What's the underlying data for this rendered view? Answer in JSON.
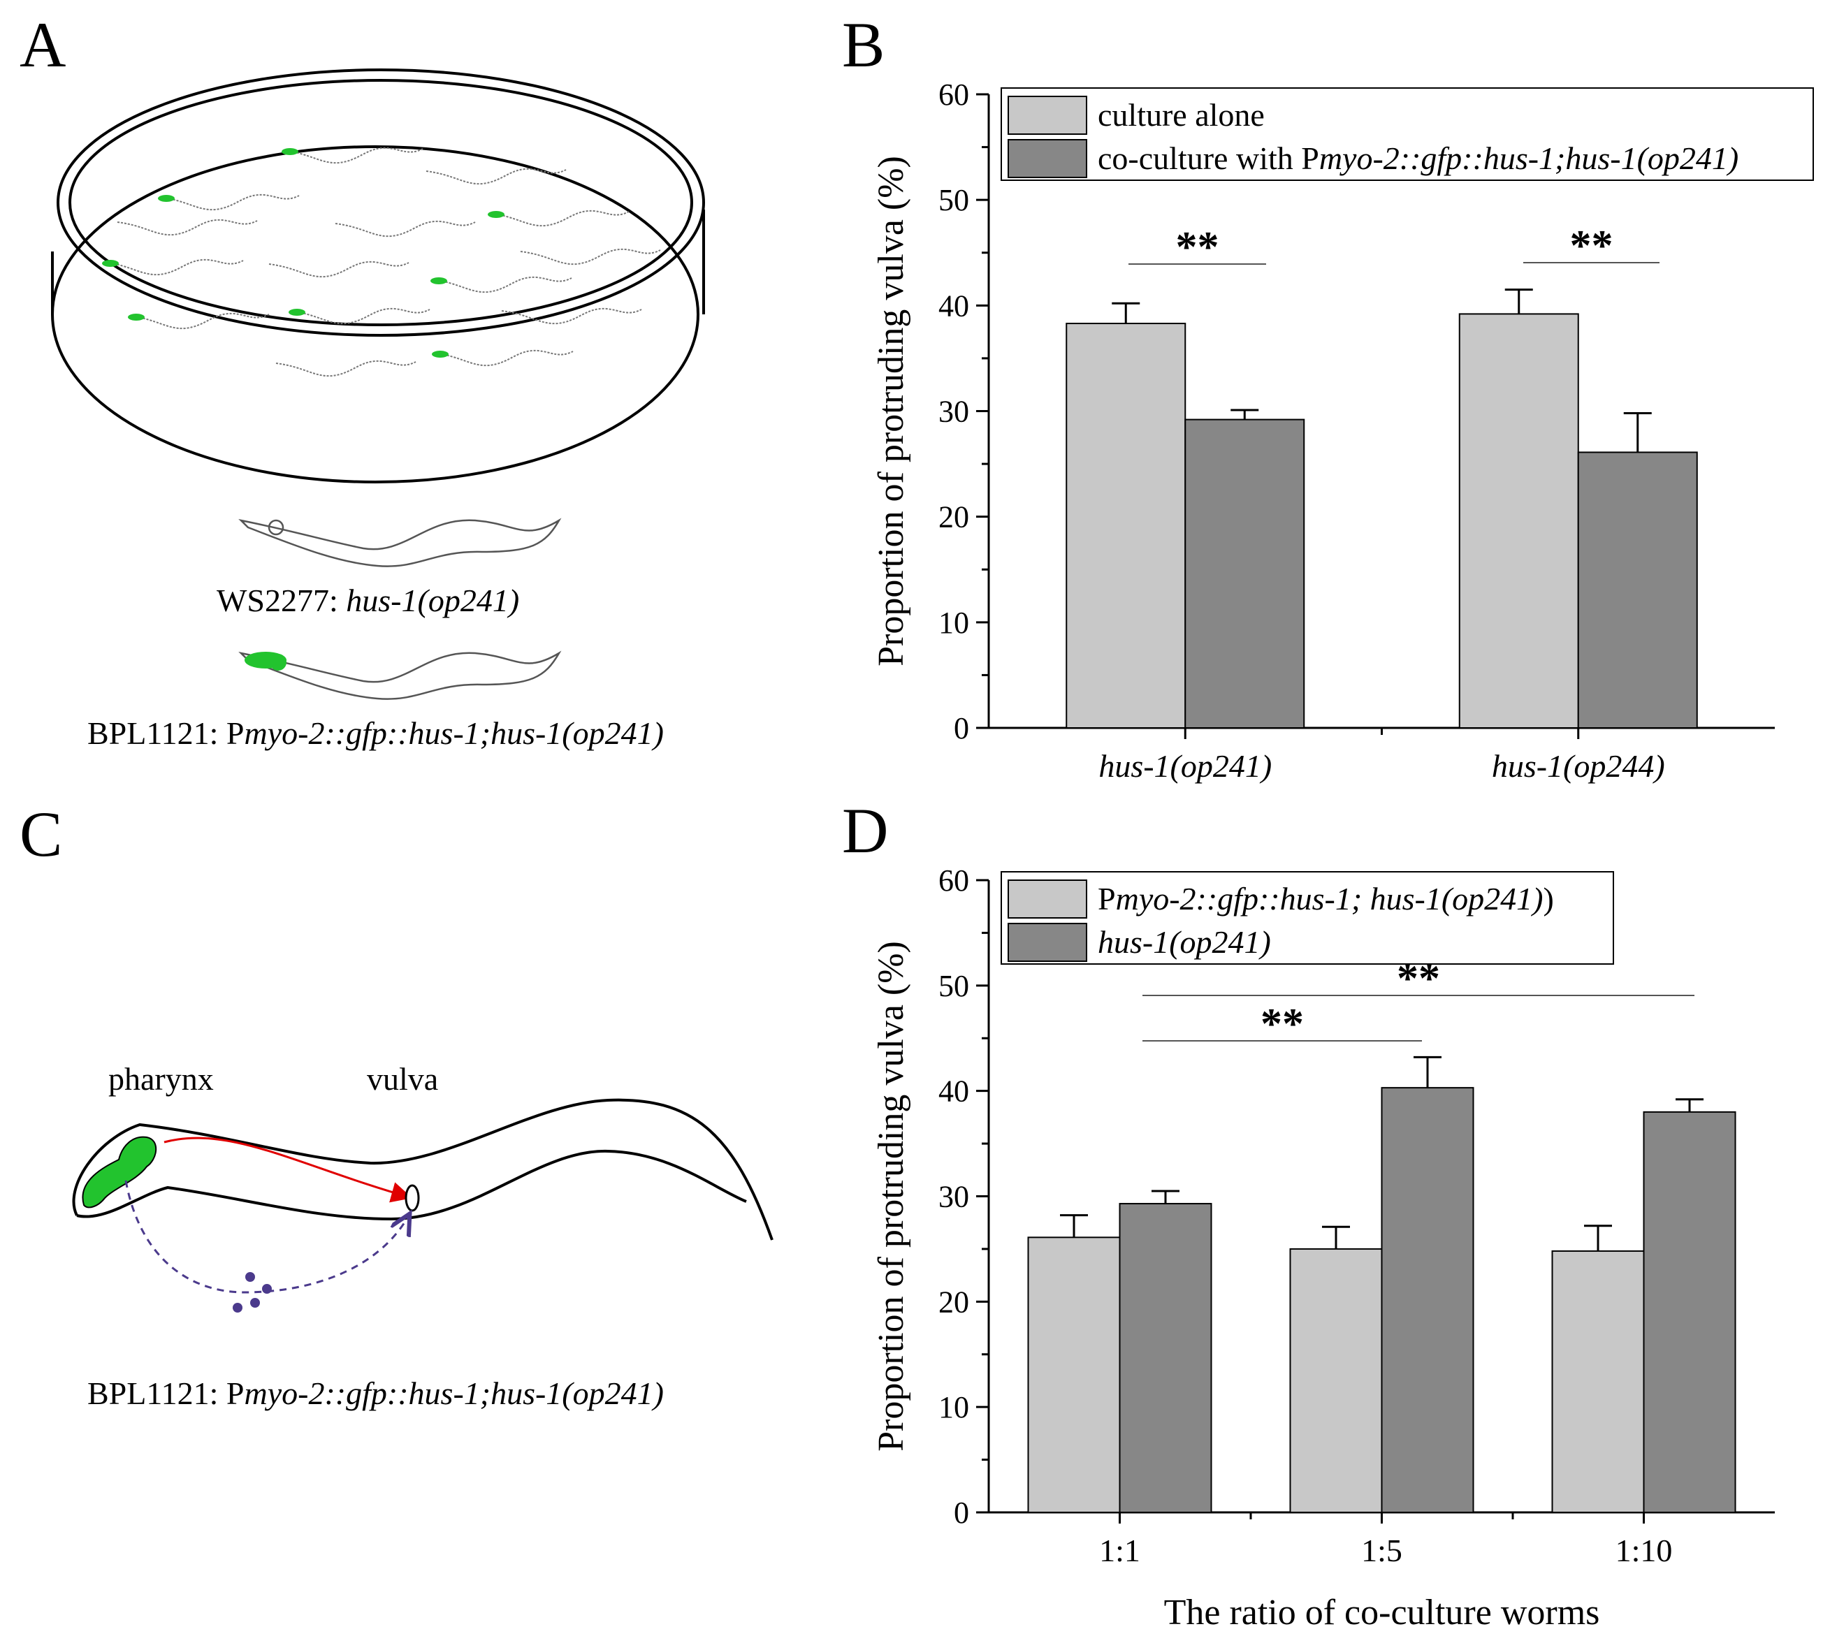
{
  "panels": {
    "A": {
      "letter": "A",
      "caption1_prefix": "WS2277: ",
      "caption1_italic": "hus-1(op241)",
      "caption2_prefix": "BPL1121: P",
      "caption2_italic": "myo-2::gfp::hus-1;hus-1(op241)"
    },
    "B": {
      "letter": "B"
    },
    "C": {
      "letter": "C",
      "label_pharynx": "pharynx",
      "label_vulva": "vulva",
      "caption_prefix": "BPL1121: P",
      "caption_italic": "myo-2::gfp::hus-1;hus-1(op241)"
    },
    "D": {
      "letter": "D"
    }
  },
  "colors": {
    "light_bar": "#c8c8c8",
    "dark_bar": "#878787",
    "gfp": "#22c32e",
    "arrow_red": "#e00000",
    "signal_purple": "#4b3a8c"
  },
  "chart_data": [
    {
      "panel": "B",
      "type": "bar",
      "ylabel": "Proportion of protruding vulva (%)",
      "xlabel": "",
      "ylim": [
        0,
        60
      ],
      "yticks": [
        0,
        10,
        20,
        30,
        40,
        50,
        60
      ],
      "categories": [
        "hus-1(op241)",
        "hus-1(op244)"
      ],
      "categories_italic": true,
      "series": [
        {
          "name": "culture alone",
          "values": [
            38.3,
            39.2
          ],
          "errors": [
            1.9,
            2.3
          ]
        },
        {
          "name_prefix": "co-culture with P",
          "name_italic": "myo-2::gfp::hus-1;hus-1(op241)",
          "values": [
            29.2,
            26.1
          ],
          "errors": [
            0.9,
            3.7
          ]
        }
      ],
      "significance": [
        {
          "label": "**",
          "between": [
            0,
            0
          ]
        },
        {
          "label": "**",
          "between": [
            1,
            1
          ]
        }
      ],
      "legend_position": "top"
    },
    {
      "panel": "D",
      "type": "bar",
      "ylabel": "Proportion of protruding vulva (%)",
      "xlabel": "The ratio of co-culture worms",
      "ylim": [
        0,
        60
      ],
      "yticks": [
        0,
        10,
        20,
        30,
        40,
        50,
        60
      ],
      "categories": [
        "1:1",
        "1:5",
        "1:10"
      ],
      "categories_italic": false,
      "series": [
        {
          "name_prefix": "P",
          "name_italic": "myo-2::gfp::hus-1; hus-1(op241)",
          "name_suffix": ")",
          "values": [
            26.1,
            25.0,
            24.8
          ],
          "errors": [
            2.1,
            2.1,
            2.4
          ]
        },
        {
          "name_italic": "hus-1(op241)",
          "values": [
            29.3,
            40.3,
            38.0
          ],
          "errors": [
            1.2,
            2.9,
            1.2
          ]
        }
      ],
      "significance": [
        {
          "label": "**",
          "between": [
            0,
            1
          ]
        },
        {
          "label": "**",
          "between": [
            0,
            2
          ]
        }
      ],
      "legend_position": "top-left"
    }
  ]
}
